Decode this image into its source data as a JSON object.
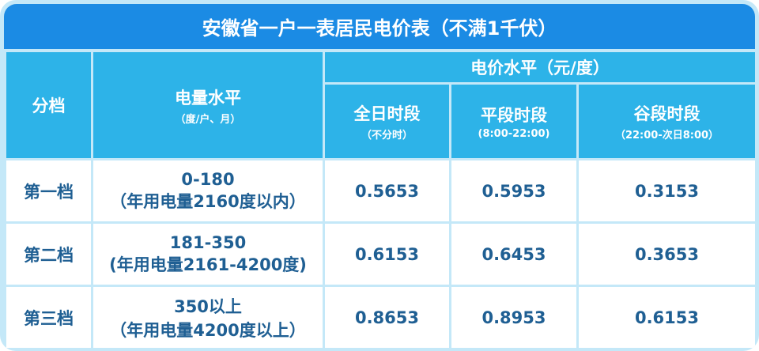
{
  "title": "安徽省一户一表居民电价表（不满1千伏）",
  "header": {
    "tier": "分档",
    "level": "电量水平",
    "level_note": "（度/户、月）",
    "price_group": "电价水平（元/度）",
    "columns": [
      {
        "label": "全日时段",
        "note": "（不分时）"
      },
      {
        "label": "平段时段",
        "note": "(8:00-22:00)"
      },
      {
        "label": "谷段时段",
        "note": "（22:00-次日8:00）"
      }
    ]
  },
  "rows": [
    {
      "tier": "第一档",
      "range": "0-180",
      "note": "（年用电量2160度以内）",
      "prices": [
        "0.5653",
        "0.5953",
        "0.3153"
      ]
    },
    {
      "tier": "第二档",
      "range": "181-350",
      "note": "(年用电量2161-4200度)",
      "prices": [
        "0.6153",
        "0.6453",
        "0.3653"
      ]
    },
    {
      "tier": "第三档",
      "range": "350以上",
      "note": "（年用电量4200度以上）",
      "prices": [
        "0.8653",
        "0.8953",
        "0.6153"
      ]
    }
  ]
}
